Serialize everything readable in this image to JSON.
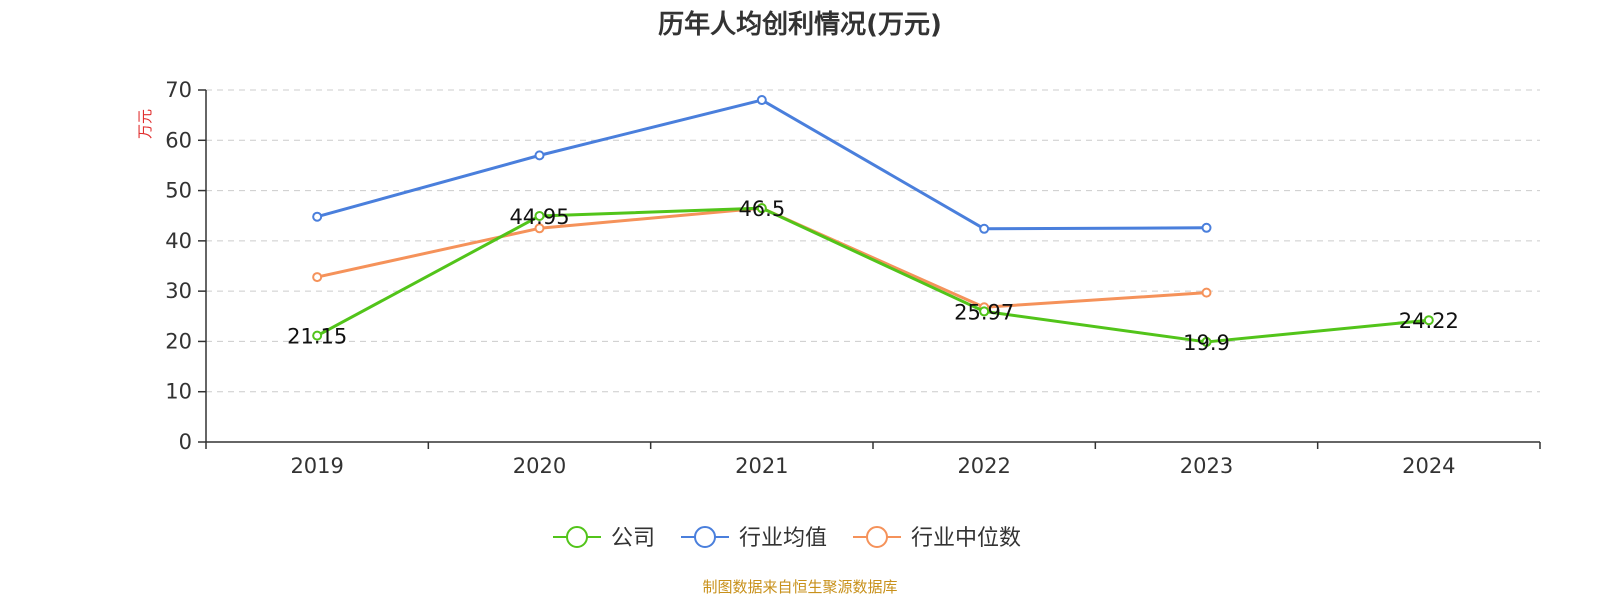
{
  "chart_data": {
    "type": "line",
    "title": "历年人均创利情况(万元)",
    "ylabel": "万元",
    "xlabel": "",
    "categories": [
      "2019",
      "2020",
      "2021",
      "2022",
      "2023",
      "2024"
    ],
    "ylim": [
      0,
      70
    ],
    "yticks": [
      0,
      10,
      20,
      30,
      40,
      50,
      60,
      70
    ],
    "grid": true,
    "legend_position": "bottom",
    "series": [
      {
        "name": "公司",
        "color": "#52c41a",
        "values": [
          21.15,
          44.95,
          46.5,
          25.97,
          19.9,
          24.22
        ],
        "labels": [
          "21.15",
          "44.95",
          "46.5",
          "25.97",
          "19.9",
          "24.22"
        ]
      },
      {
        "name": "行业均值",
        "color": "#4a7fdc",
        "values": [
          44.8,
          57.0,
          68.0,
          42.4,
          42.6,
          null
        ]
      },
      {
        "name": "行业中位数",
        "color": "#f5925a",
        "values": [
          32.8,
          42.5,
          46.5,
          26.8,
          29.7,
          null
        ]
      }
    ]
  },
  "source_text": "制图数据来自恒生聚源数据库",
  "colors": {
    "axis": "#333333",
    "grid": "#cccccc",
    "ylabel": "#e03030",
    "source": "#c8911b"
  }
}
